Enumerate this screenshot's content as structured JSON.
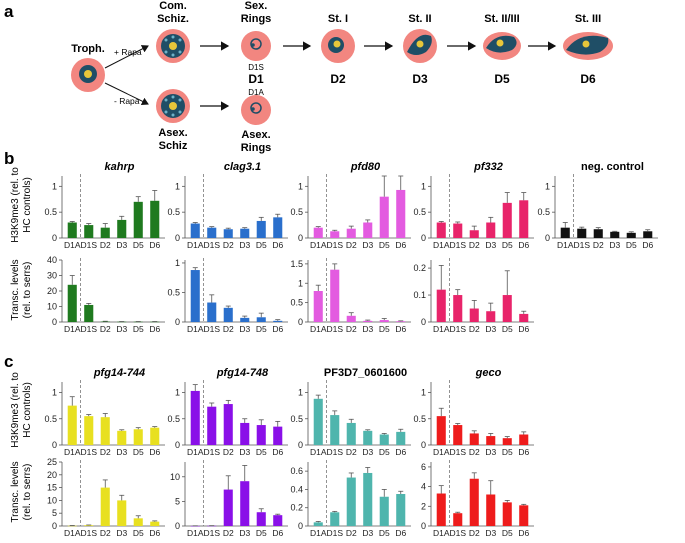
{
  "panel_a": {
    "label": "a",
    "troph": "Troph.",
    "rapa_plus": "+ Rapa",
    "rapa_minus": "- Rapa",
    "com_schiz": [
      "Com.",
      "Schiz."
    ],
    "asex_schiz": [
      "Asex.",
      "Schiz"
    ],
    "sex_rings": [
      "Sex.",
      "Rings"
    ],
    "asex_rings": [
      "Asex.",
      "Rings"
    ],
    "d1s": "D1S",
    "d1": "D1",
    "d1a": "D1A",
    "stages": [
      {
        "title": "St. I",
        "day": "D2"
      },
      {
        "title": "St. II",
        "day": "D3"
      },
      {
        "title": "St. II/III",
        "day": "D5"
      },
      {
        "title": "St. III",
        "day": "D6"
      }
    ]
  },
  "panel_b": {
    "label": "b",
    "ylabel_top": [
      "H3K9me3 (rel. to",
      "HC controls)"
    ],
    "ylabel_bottom": [
      "Transc. levels",
      "(rel. to serrs)"
    ]
  },
  "panel_c": {
    "label": "c",
    "ylabel_top": [
      "H3K9me3 (rel. to",
      "HC controls)"
    ],
    "ylabel_bottom": [
      "Transc. levels",
      "(rel. to serrs)"
    ]
  },
  "chart_data": [
    {
      "type": "bar",
      "panel": "b",
      "title": "kahrp",
      "metric": "H3K9me3",
      "color": "#1f7a1f",
      "categories": [
        "D1A",
        "D1S",
        "D2",
        "D3",
        "D5",
        "D6"
      ],
      "values": [
        0.3,
        0.25,
        0.2,
        0.35,
        0.7,
        0.72
      ],
      "errors": [
        0.02,
        0.03,
        0.08,
        0.07,
        0.1,
        0.2
      ],
      "yticks": [
        0,
        0.5,
        1
      ],
      "ylim": [
        0,
        1.2
      ]
    },
    {
      "type": "bar",
      "panel": "b",
      "title": "clag3.1",
      "metric": "H3K9me3",
      "color": "#2a6fcc",
      "categories": [
        "D1A",
        "D1S",
        "D2",
        "D3",
        "D5",
        "D6"
      ],
      "values": [
        0.28,
        0.2,
        0.17,
        0.18,
        0.33,
        0.4
      ],
      "errors": [
        0.02,
        0.02,
        0.02,
        0.02,
        0.07,
        0.06
      ],
      "yticks": [
        0,
        0.5,
        1
      ],
      "ylim": [
        0,
        1.2
      ]
    },
    {
      "type": "bar",
      "panel": "b",
      "title": "pfd80",
      "metric": "H3K9me3",
      "color": "#e35be0",
      "categories": [
        "D1A",
        "D1S",
        "D2",
        "D3",
        "D5",
        "D6"
      ],
      "values": [
        0.2,
        0.13,
        0.18,
        0.3,
        0.8,
        0.93
      ],
      "errors": [
        0.02,
        0.02,
        0.05,
        0.05,
        0.55,
        0.45
      ],
      "yticks": [
        0,
        0.5,
        1
      ],
      "ylim": [
        0,
        1.2
      ]
    },
    {
      "type": "bar",
      "panel": "b",
      "title": "pf332",
      "metric": "H3K9me3",
      "color": "#e8246a",
      "categories": [
        "D1A",
        "D1S",
        "D2",
        "D3",
        "D5",
        "D6"
      ],
      "values": [
        0.3,
        0.28,
        0.15,
        0.3,
        0.68,
        0.73
      ],
      "errors": [
        0.02,
        0.03,
        0.08,
        0.1,
        0.2,
        0.15
      ],
      "yticks": [
        0,
        0.5,
        1
      ],
      "ylim": [
        0,
        1.2
      ]
    },
    {
      "type": "bar",
      "panel": "b",
      "title": "neg. control",
      "metric": "H3K9me3",
      "color": "#111111",
      "categories": [
        "D1A",
        "D1S",
        "D2",
        "D3",
        "D5",
        "D6"
      ],
      "values": [
        0.2,
        0.18,
        0.17,
        0.12,
        0.1,
        0.13
      ],
      "errors": [
        0.1,
        0.03,
        0.03,
        0.01,
        0.02,
        0.03
      ],
      "yticks": [
        0,
        0.5,
        1
      ],
      "ylim": [
        0,
        1.2
      ]
    },
    {
      "type": "bar",
      "panel": "b",
      "title": "kahrp",
      "metric": "transcript",
      "color": "#1f7a1f",
      "categories": [
        "D1A",
        "D1S",
        "D2",
        "D3",
        "D5",
        "D6"
      ],
      "values": [
        24,
        11,
        0.3,
        0.2,
        0.2,
        0.2
      ],
      "errors": [
        6,
        1,
        0.2,
        0.1,
        0.1,
        0.1
      ],
      "yticks": [
        0,
        10,
        20,
        30,
        40
      ],
      "ylim": [
        0,
        40
      ]
    },
    {
      "type": "bar",
      "panel": "b",
      "title": "clag3.1",
      "metric": "transcript",
      "color": "#2a6fcc",
      "categories": [
        "D1A",
        "D1S",
        "D2",
        "D3",
        "D5",
        "D6"
      ],
      "values": [
        0.88,
        0.33,
        0.24,
        0.07,
        0.08,
        0.02
      ],
      "errors": [
        0.04,
        0.13,
        0.03,
        0.03,
        0.07,
        0.02
      ],
      "yticks": [
        0,
        0.5,
        1
      ],
      "ylim": [
        0,
        1.05
      ]
    },
    {
      "type": "bar",
      "panel": "b",
      "title": "pfd80",
      "metric": "transcript",
      "color": "#e35be0",
      "categories": [
        "D1A",
        "D1S",
        "D2",
        "D3",
        "D5",
        "D6"
      ],
      "values": [
        0.8,
        1.35,
        0.16,
        0.03,
        0.05,
        0.02
      ],
      "errors": [
        0.15,
        0.15,
        0.08,
        0.02,
        0.04,
        0.01
      ],
      "yticks": [
        0,
        0.5,
        1,
        1.5
      ],
      "ylim": [
        0,
        1.6
      ]
    },
    {
      "type": "bar",
      "panel": "b",
      "title": "pf332",
      "metric": "transcript",
      "color": "#e8246a",
      "categories": [
        "D1A",
        "D1S",
        "D2",
        "D3",
        "D5",
        "D6"
      ],
      "values": [
        0.12,
        0.1,
        0.05,
        0.04,
        0.1,
        0.03
      ],
      "errors": [
        0.09,
        0.02,
        0.03,
        0.03,
        0.09,
        0.01
      ],
      "yticks": [
        0,
        0.1,
        0.2
      ],
      "ylim": [
        0,
        0.23
      ]
    },
    {
      "type": "bar",
      "panel": "c",
      "title": "pfg14-744",
      "metric": "H3K9me3",
      "color": "#e8e020",
      "categories": [
        "D1A",
        "D1S",
        "D2",
        "D3",
        "D5",
        "D6"
      ],
      "values": [
        0.75,
        0.55,
        0.53,
        0.27,
        0.3,
        0.33
      ],
      "errors": [
        0.17,
        0.03,
        0.07,
        0.02,
        0.03,
        0.02
      ],
      "yticks": [
        0,
        0.5,
        1
      ],
      "ylim": [
        0,
        1.2
      ]
    },
    {
      "type": "bar",
      "panel": "c",
      "title": "pfg14-748",
      "metric": "H3K9me3",
      "color": "#8a10e8",
      "categories": [
        "D1A",
        "D1S",
        "D2",
        "D3",
        "D5",
        "D6"
      ],
      "values": [
        1.03,
        0.73,
        0.78,
        0.42,
        0.38,
        0.35
      ],
      "errors": [
        0.12,
        0.07,
        0.07,
        0.08,
        0.1,
        0.1
      ],
      "yticks": [
        0,
        0.5,
        1
      ],
      "ylim": [
        0,
        1.2
      ]
    },
    {
      "type": "bar",
      "panel": "c",
      "title": "PF3D7_0601600",
      "metric": "H3K9me3",
      "color": "#4fb5ad",
      "categories": [
        "D1A",
        "D1S",
        "D2",
        "D3",
        "D5",
        "D6"
      ],
      "values": [
        0.88,
        0.57,
        0.42,
        0.27,
        0.2,
        0.25
      ],
      "errors": [
        0.07,
        0.08,
        0.07,
        0.02,
        0.02,
        0.05
      ],
      "yticks": [
        0,
        0.5,
        1
      ],
      "ylim": [
        0,
        1.2
      ]
    },
    {
      "type": "bar",
      "panel": "c",
      "title": "geco",
      "metric": "H3K9me3",
      "color": "#ee1c1c",
      "categories": [
        "D1A",
        "D1S",
        "D2",
        "D3",
        "D5",
        "D6"
      ],
      "values": [
        0.55,
        0.38,
        0.22,
        0.17,
        0.13,
        0.2
      ],
      "errors": [
        0.15,
        0.03,
        0.05,
        0.05,
        0.03,
        0.05
      ],
      "yticks": [
        0,
        0.5,
        1
      ],
      "ylim": [
        0,
        1.2
      ]
    },
    {
      "type": "bar",
      "panel": "c",
      "title": "pfg14-744",
      "metric": "transcript",
      "color": "#e8e020",
      "categories": [
        "D1A",
        "D1S",
        "D2",
        "D3",
        "D5",
        "D6"
      ],
      "values": [
        0.1,
        0.3,
        15,
        10,
        3,
        1.7
      ],
      "errors": [
        0.1,
        0.1,
        3,
        2,
        1,
        0.3
      ],
      "yticks": [
        0,
        5,
        10,
        15,
        20,
        25
      ],
      "ylim": [
        0,
        25
      ]
    },
    {
      "type": "bar",
      "panel": "c",
      "title": "pfg14-748",
      "metric": "transcript",
      "color": "#8a10e8",
      "categories": [
        "D1A",
        "D1S",
        "D2",
        "D3",
        "D5",
        "D6"
      ],
      "values": [
        0.02,
        0.05,
        7.4,
        9.1,
        2.8,
        2.2
      ],
      "errors": [
        0.02,
        0.02,
        2.8,
        3.2,
        0.7,
        0.2
      ],
      "yticks": [
        0,
        5,
        10
      ],
      "ylim": [
        0,
        13
      ]
    },
    {
      "type": "bar",
      "panel": "c",
      "title": "PF3D7_0601600",
      "metric": "transcript",
      "color": "#4fb5ad",
      "categories": [
        "D1A",
        "D1S",
        "D2",
        "D3",
        "D5",
        "D6"
      ],
      "values": [
        0.04,
        0.15,
        0.53,
        0.58,
        0.32,
        0.35
      ],
      "errors": [
        0.01,
        0.01,
        0.05,
        0.06,
        0.08,
        0.03
      ],
      "yticks": [
        0,
        0.2,
        0.4,
        0.6
      ],
      "ylim": [
        0,
        0.7
      ]
    },
    {
      "type": "bar",
      "panel": "c",
      "title": "geco",
      "metric": "transcript",
      "color": "#ee1c1c",
      "categories": [
        "D1A",
        "D1S",
        "D2",
        "D3",
        "D5",
        "D6"
      ],
      "values": [
        3.3,
        1.3,
        4.8,
        3.2,
        2.4,
        2.1
      ],
      "errors": [
        0.8,
        0.1,
        0.6,
        1.4,
        0.2,
        0.1
      ],
      "yticks": [
        0,
        2,
        4,
        6
      ],
      "ylim": [
        0,
        6.5
      ]
    }
  ]
}
